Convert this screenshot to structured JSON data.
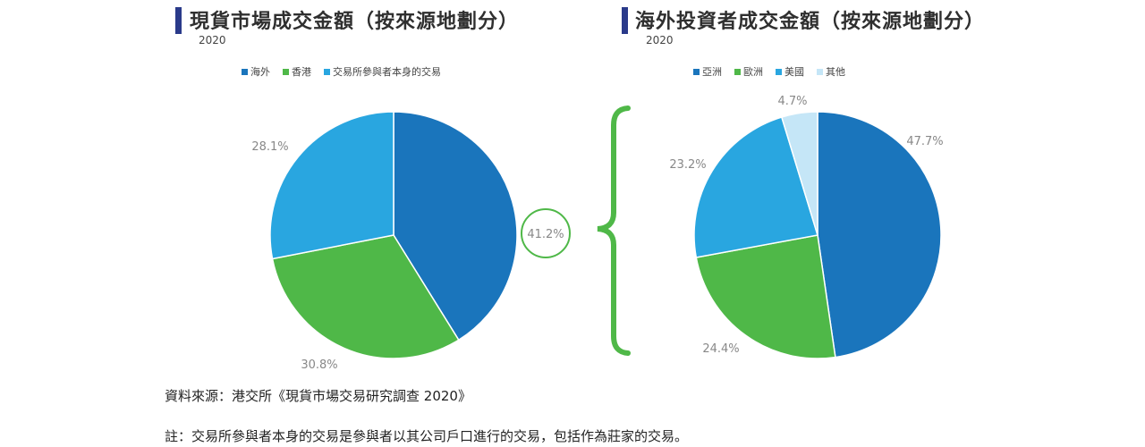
{
  "chart_data": [
    {
      "type": "pie",
      "title": "現貨市場成交金額（按來源地劃分）",
      "subtitle": "2020",
      "slices": [
        {
          "name": "海外",
          "value": 41.2,
          "label": "41.2%",
          "color": "#1a75bc"
        },
        {
          "name": "香港",
          "value": 30.8,
          "label": "30.8%",
          "color": "#4fb848"
        },
        {
          "name": "交易所參與者本身的交易",
          "value": 28.1,
          "label": "28.1%",
          "color": "#29a6e0"
        }
      ],
      "legend_position": "top"
    },
    {
      "type": "pie",
      "title": "海外投資者成交金額（按來源地劃分）",
      "subtitle": "2020",
      "slices": [
        {
          "name": "亞洲",
          "value": 47.7,
          "label": "47.7%",
          "color": "#1a75bc"
        },
        {
          "name": "歐洲",
          "value": 24.4,
          "label": "24.4%",
          "color": "#4fb848"
        },
        {
          "name": "美國",
          "value": 23.2,
          "label": "23.2%",
          "color": "#29a6e0"
        },
        {
          "name": "其他",
          "value": 4.7,
          "label": "4.7%",
          "color": "#c5e6f7"
        }
      ],
      "legend_position": "top"
    }
  ],
  "accent_color": "#4fb848",
  "title_bar_color": "#2a3a8a",
  "notes": {
    "source": "資料來源：港交所《現貨市場交易研究調查 2020》",
    "footnote": "註：交易所參與者本身的交易是參與者以其公司戶口進行的交易，包括作為莊家的交易。"
  }
}
